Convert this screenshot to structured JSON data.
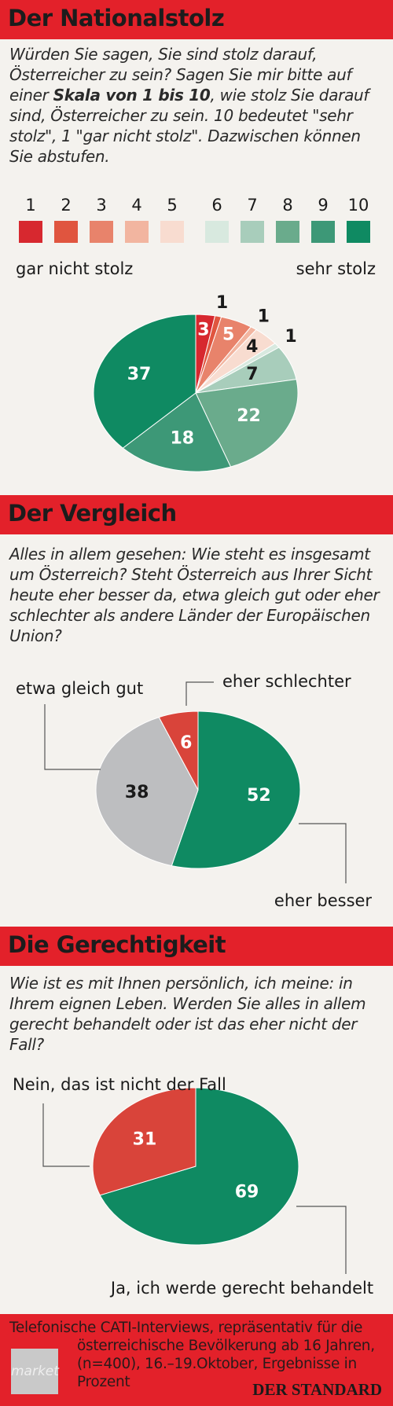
{
  "chart_data": [
    {
      "type": "pie",
      "title": "Der Nationalstolz",
      "subtitle_parts": [
        "Würden Sie sagen, Sie sind stolz darauf, Österreicher zu sein? Sagen Sie mir bitte auf einer ",
        "Skala von 1 bis 10",
        ", wie stolz Sie darauf sind, Österreicher zu sein. 10 bedeutet \"sehr stolz\", 1 \"gar nicht stolz\". Dazwischen können Sie abstufen."
      ],
      "categories": [
        "1",
        "2",
        "3",
        "4",
        "5",
        "6",
        "7",
        "8",
        "9",
        "10"
      ],
      "values": [
        3,
        1,
        5,
        1,
        4,
        1,
        7,
        22,
        18,
        37
      ],
      "colors": [
        "#d7282f",
        "#e0553f",
        "#e8836b",
        "#f2b5a0",
        "#f8dcd0",
        "#d8e9df",
        "#a8cdbb",
        "#6aab8c",
        "#3d9877",
        "#0f8a62"
      ],
      "scale_labels": [
        "gar nicht stolz",
        "sehr stolz"
      ]
    },
    {
      "type": "pie",
      "title": "Der Vergleich",
      "subtitle_parts": [
        "Alles in allem gesehen: Wie steht es insgesamt um Österreich? Steht Österreich aus Ihrer Sicht heute eher besser da, etwa gleich gut oder eher schlechter als andere Länder der Europäischen Union?"
      ],
      "categories": [
        "eher besser",
        "etwa gleich gut",
        "eher schlechter"
      ],
      "values": [
        52,
        38,
        6
      ],
      "colors": [
        "#0f8a62",
        "#bdbec0",
        "#d9443a"
      ]
    },
    {
      "type": "pie",
      "title": "Die Gerechtigkeit",
      "subtitle_parts": [
        "Wie ist es mit Ihnen persönlich, ich meine: in Ihrem eignen Leben. Werden Sie alles in allem gerecht behandelt oder ist das eher nicht der Fall?"
      ],
      "categories": [
        "Ja, ich werde gerecht behandelt",
        "Nein, das ist nicht der Fall"
      ],
      "values": [
        69,
        31
      ],
      "colors": [
        "#0f8a62",
        "#d9443a"
      ]
    }
  ],
  "footer": {
    "text": "Telefonische CATI-Interviews, repräsentativ für die österreichische Bevölkerung ab 16 Jahren, (n=400), 16.–19.Oktober, Ergebnisse in Prozent",
    "institute": "market",
    "logo": "DER STANDARD"
  }
}
